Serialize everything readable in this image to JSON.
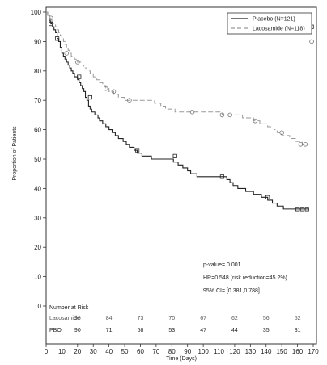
{
  "chart_data": {
    "type": "line",
    "title": "",
    "xlabel": "Time (Days)",
    "ylabel": "Proportion of Patients",
    "xlim": [
      0,
      170
    ],
    "ylim": [
      0,
      100
    ],
    "x_ticks": [
      0,
      10,
      20,
      30,
      40,
      50,
      60,
      70,
      80,
      90,
      100,
      110,
      120,
      130,
      140,
      150,
      160,
      170
    ],
    "y_ticks": [
      0,
      10,
      20,
      30,
      40,
      50,
      60,
      70,
      80,
      90,
      100
    ],
    "legend_position": "top-right",
    "series": [
      {
        "name": "Placebo (N=121)",
        "color": "#222222",
        "style": "solid",
        "marker": "square",
        "x": [
          0,
          1,
          2,
          3,
          4,
          5,
          6,
          7,
          8,
          9,
          10,
          11,
          12,
          13,
          14,
          15,
          16,
          17,
          18,
          19,
          20,
          21,
          22,
          23,
          24,
          25,
          26,
          27,
          28,
          29,
          30,
          31,
          32,
          33,
          34,
          35,
          36,
          37,
          38,
          39,
          40,
          41,
          42,
          43,
          44,
          45,
          46,
          47,
          48,
          49,
          50,
          51,
          52,
          53,
          54,
          55,
          56,
          57,
          58,
          59,
          60,
          61,
          62,
          63,
          64,
          65,
          66,
          67,
          68,
          69,
          70,
          71,
          72,
          73,
          74,
          75,
          76,
          77,
          78,
          79,
          80,
          81,
          82,
          83,
          84,
          85,
          86,
          87,
          88,
          89,
          90,
          91,
          92,
          93,
          94,
          95,
          96,
          97,
          98,
          99,
          100,
          101,
          102,
          103,
          104,
          105,
          106,
          107,
          108,
          109,
          110,
          111,
          112,
          113,
          114,
          115,
          116,
          117,
          118,
          119,
          120,
          121,
          122,
          123,
          124,
          125,
          126,
          127,
          128,
          129,
          130,
          131,
          132,
          133,
          134,
          135,
          136,
          137,
          138,
          139,
          140,
          141,
          142,
          143,
          144,
          145,
          146,
          147,
          148,
          149,
          150,
          151,
          152,
          153,
          154,
          155,
          156,
          157,
          158,
          159,
          160,
          161,
          162,
          163,
          164,
          165,
          166,
          167
        ],
        "values": [
          100,
          99,
          97,
          96,
          95,
          94,
          93,
          91,
          90,
          88,
          86,
          85,
          84,
          83,
          82,
          81,
          80,
          79,
          78,
          78,
          77,
          76,
          75,
          74,
          73,
          71,
          70,
          68,
          67,
          66,
          66,
          65,
          65,
          64,
          63,
          63,
          62,
          62,
          61,
          61,
          60,
          60,
          59,
          59,
          58,
          58,
          57,
          57,
          57,
          56,
          56,
          55,
          55,
          54,
          54,
          54,
          53,
          53,
          52,
          52,
          52,
          51,
          51,
          51,
          51,
          51,
          51,
          50,
          50,
          50,
          50,
          50,
          50,
          50,
          50,
          50,
          50,
          50,
          50,
          50,
          50,
          49,
          49,
          49,
          48,
          48,
          48,
          47,
          47,
          47,
          46,
          46,
          45,
          45,
          45,
          45,
          44,
          44,
          44,
          44,
          44,
          44,
          44,
          44,
          44,
          44,
          44,
          44,
          44,
          44,
          44,
          44,
          44,
          44,
          44,
          43,
          43,
          42,
          42,
          41,
          41,
          41,
          40,
          40,
          40,
          40,
          40,
          39,
          39,
          39,
          39,
          39,
          38,
          38,
          38,
          38,
          38,
          37,
          37,
          37,
          37,
          36,
          36,
          36,
          35,
          35,
          35,
          34,
          34,
          34,
          34,
          33,
          33,
          33,
          33,
          33,
          33,
          33,
          33,
          33,
          33,
          33,
          33,
          33,
          33,
          33,
          33,
          33
        ]
      },
      {
        "name": "Lacosamide (N=118)",
        "color": "#999999",
        "style": "dashed",
        "marker": "circle",
        "x": [
          0,
          1,
          2,
          3,
          4,
          5,
          6,
          7,
          8,
          9,
          10,
          11,
          12,
          13,
          14,
          15,
          16,
          17,
          18,
          19,
          20,
          21,
          22,
          23,
          24,
          25,
          26,
          27,
          28,
          29,
          30,
          31,
          32,
          33,
          34,
          35,
          36,
          37,
          38,
          39,
          40,
          41,
          42,
          43,
          44,
          45,
          46,
          47,
          48,
          49,
          50,
          51,
          52,
          53,
          54,
          55,
          56,
          57,
          58,
          59,
          60,
          61,
          62,
          63,
          64,
          65,
          66,
          67,
          68,
          69,
          70,
          71,
          72,
          73,
          74,
          75,
          76,
          77,
          78,
          79,
          80,
          81,
          82,
          83,
          84,
          85,
          86,
          87,
          88,
          89,
          90,
          91,
          92,
          93,
          94,
          95,
          96,
          97,
          98,
          99,
          100,
          101,
          102,
          103,
          104,
          105,
          106,
          107,
          108,
          109,
          110,
          111,
          112,
          113,
          114,
          115,
          116,
          117,
          118,
          119,
          120,
          121,
          122,
          123,
          124,
          125,
          126,
          127,
          128,
          129,
          130,
          131,
          132,
          133,
          134,
          135,
          136,
          137,
          138,
          139,
          140,
          141,
          142,
          143,
          144,
          145,
          146,
          147,
          148,
          149,
          150,
          151,
          152,
          153,
          154,
          155,
          156,
          157,
          158,
          159,
          160,
          161,
          162,
          163,
          164,
          165,
          166,
          167
        ],
        "values": [
          100,
          99,
          98,
          97,
          96,
          96,
          95,
          94,
          93,
          92,
          91,
          90,
          89,
          88,
          87,
          86,
          85,
          85,
          84,
          84,
          83,
          83,
          82,
          82,
          81,
          81,
          80,
          80,
          79,
          79,
          78,
          78,
          77,
          77,
          76,
          76,
          75,
          75,
          74,
          74,
          73,
          73,
          73,
          72,
          72,
          72,
          71,
          71,
          71,
          71,
          70,
          70,
          70,
          70,
          70,
          70,
          70,
          70,
          70,
          70,
          70,
          70,
          70,
          70,
          70,
          70,
          70,
          70,
          70,
          69,
          69,
          69,
          69,
          68,
          68,
          68,
          67,
          67,
          67,
          67,
          67,
          67,
          66,
          66,
          66,
          66,
          66,
          66,
          66,
          66,
          66,
          66,
          66,
          66,
          66,
          66,
          66,
          66,
          66,
          66,
          66,
          66,
          66,
          66,
          66,
          66,
          66,
          66,
          66,
          66,
          66,
          66,
          65,
          65,
          65,
          65,
          65,
          65,
          65,
          65,
          65,
          65,
          65,
          65,
          65,
          64,
          64,
          64,
          64,
          64,
          64,
          64,
          63,
          63,
          63,
          63,
          62,
          62,
          62,
          62,
          62,
          61,
          61,
          61,
          61,
          60,
          60,
          59,
          59,
          59,
          58,
          58,
          58,
          58,
          58,
          57,
          57,
          57,
          57,
          56,
          56,
          56,
          56,
          55,
          55,
          55,
          55,
          55
        ]
      }
    ],
    "censor_marks": {
      "placebo": [
        [
          3,
          96
        ],
        [
          7,
          91
        ],
        [
          21,
          78
        ],
        [
          28,
          71
        ],
        [
          58,
          53
        ],
        [
          82,
          51
        ],
        [
          112,
          44
        ],
        [
          141,
          37
        ],
        [
          160,
          33
        ],
        [
          163,
          33
        ],
        [
          166,
          33
        ],
        [
          169,
          95
        ]
      ],
      "lacosamide": [
        [
          3,
          98
        ],
        [
          13,
          86
        ],
        [
          20,
          83
        ],
        [
          38,
          74
        ],
        [
          43,
          73
        ],
        [
          53,
          70
        ],
        [
          93,
          66
        ],
        [
          112,
          65
        ],
        [
          117,
          65
        ],
        [
          133,
          63
        ],
        [
          150,
          59
        ],
        [
          162,
          55
        ],
        [
          165,
          55
        ],
        [
          169,
          90
        ]
      ]
    },
    "stats": {
      "p_value": "p-value= 0.001",
      "hr": "HR=0.548 (risk reduction=45.2%)",
      "ci": "95% CI= [0.381,0.788]"
    },
    "risk_table": {
      "title": "Number at Risk",
      "rows": [
        {
          "label": "Lacosamide",
          "x": [
            20,
            40,
            60,
            80,
            100,
            120,
            140,
            160
          ],
          "counts": [
            "96",
            "84",
            "73",
            "70",
            "67",
            "62",
            "56",
            "52"
          ]
        },
        {
          "label": "PBO:",
          "x": [
            20,
            40,
            60,
            80,
            100,
            120,
            140,
            160
          ],
          "counts": [
            "90",
            "71",
            "58",
            "53",
            "47",
            "44",
            "35",
            "31"
          ]
        }
      ]
    }
  }
}
